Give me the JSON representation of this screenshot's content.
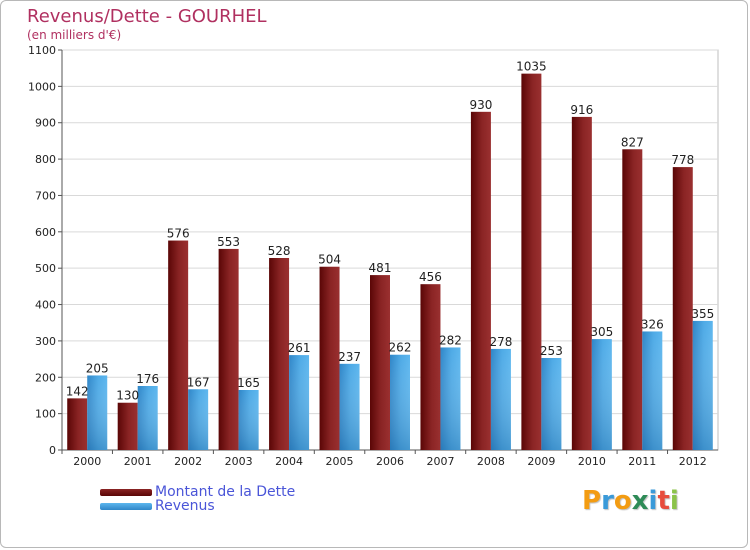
{
  "header": {
    "title": "Revenus/Dette - GOURHEL",
    "subtitle": "(en milliers d'€)"
  },
  "legend": {
    "items": [
      {
        "label": "Montant de la Dette",
        "color": "#6b0a0a"
      },
      {
        "label": "Revenus",
        "color": "#3a9ad9"
      }
    ]
  },
  "logo": {
    "letters": [
      "P",
      "r",
      "o",
      "x",
      "i",
      "t",
      "i"
    ],
    "colors": [
      "#f39c12",
      "#3a9ad9",
      "#f39c12",
      "#2e8b57",
      "#3a9ad9",
      "#e74c3c",
      "#8bc34a"
    ]
  },
  "chart_data": {
    "type": "bar",
    "title": "Revenus/Dette - GOURHEL",
    "subtitle": "(en milliers d'€)",
    "categories": [
      "2000",
      "2001",
      "2002",
      "2003",
      "2004",
      "2005",
      "2006",
      "2007",
      "2008",
      "2009",
      "2010",
      "2011",
      "2012"
    ],
    "series": [
      {
        "name": "Montant de la Dette",
        "color": "#7b1515",
        "values": [
          142,
          130,
          576,
          553,
          528,
          504,
          481,
          456,
          930,
          1035,
          916,
          827,
          778
        ]
      },
      {
        "name": "Revenus",
        "color": "#3a9ad9",
        "values": [
          205,
          176,
          167,
          165,
          261,
          237,
          262,
          282,
          278,
          253,
          305,
          326,
          355
        ]
      }
    ],
    "ylim": [
      0,
      1100
    ],
    "yticks": [
      "0",
      "100",
      "200",
      "300",
      "400",
      "500",
      "600",
      "700",
      "800",
      "900",
      "1000",
      "1100"
    ],
    "grid": true,
    "legend_position": "bottom-left"
  }
}
